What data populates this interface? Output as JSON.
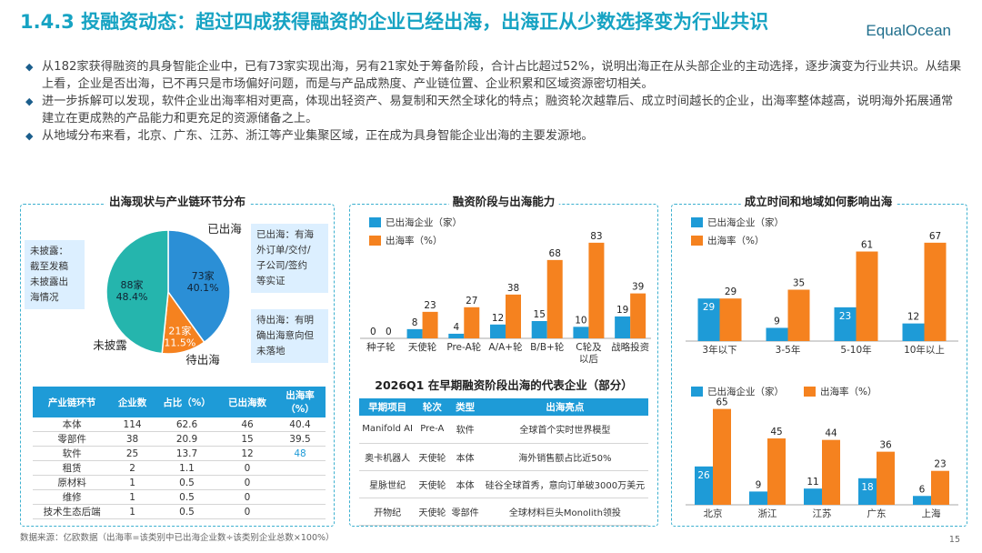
{
  "header": {
    "title": "1.4.3 投融资动态：超过四成获得融资的企业已经出海，出海正从少数选择变为行业共识",
    "logo": "EqualOcean"
  },
  "bullets": [
    "从182家获得融资的具身智能企业中，已有73家实现出海，另有21家处于筹备阶段，合计占比超过52%，说明出海正在从头部企业的主动选择，逐步演变为行业共识。从结果上看，企业是否出海，已不再只是市场偏好问题，而是与产品成熟度、产业链位置、企业积累和区域资源密切相关。",
    "进一步拆解可以发现，软件企业出海率相对更高，体现出轻资产、易复制和天然全球化的特点；融资轮次越靠后、成立时间越长的企业，出海率整体越高，说明海外拓展通常建立在更成熟的产品能力和更充足的资源储备之上。",
    "从地域分布来看，北京、广东、江苏、浙江等产业集聚区域，正在成为具身智能企业出海的主要发源地。"
  ],
  "panel_left": {
    "title": "出海现状与产业链环节分布",
    "note_left": [
      "未披露：",
      "截至发稿",
      "未披露出",
      "海情况"
    ],
    "note_right_top": [
      "已出海：有海",
      "外订单/交付/",
      "子公司/签约",
      "等实证"
    ],
    "note_right_bottom": [
      "待出海：有明",
      "确出海意向但",
      "未落地"
    ],
    "table": {
      "headers": [
        "产业链环节",
        "企业数",
        "占比（%）",
        "已出海数",
        "出海率（%）"
      ],
      "rows": [
        [
          "本体",
          "114",
          "62.6",
          "46",
          "40.4"
        ],
        [
          "零部件",
          "38",
          "20.9",
          "15",
          "39.5"
        ],
        [
          "软件",
          "25",
          "13.7",
          "12",
          "48"
        ],
        [
          "租赁",
          "2",
          "1.1",
          "0",
          ""
        ],
        [
          "原材料",
          "1",
          "0.5",
          "0",
          ""
        ],
        [
          "维修",
          "1",
          "0.5",
          "0",
          ""
        ],
        [
          "技术生态后端",
          "1",
          "0.5",
          "0",
          ""
        ]
      ]
    }
  },
  "panel_mid": {
    "title": "融资阶段与出海能力",
    "table_title": "2026Q1 在早期融资阶段出海的代表企业（部分）",
    "table": {
      "headers": [
        "早期项目",
        "轮次",
        "类型",
        "出海亮点"
      ],
      "rows": [
        [
          "Manifold AI",
          "Pre-A",
          "软件",
          "全球首个实时世界模型"
        ],
        [
          "奥卡机器人",
          "天使轮",
          "本体",
          "海外销售额占比近50%"
        ],
        [
          "星脉世纪",
          "天使轮",
          "本体",
          "硅谷全球首秀，意向订单破3000万美元"
        ],
        [
          "开物纪",
          "天使轮",
          "零部件",
          "全球材料巨头Monolith领投"
        ]
      ]
    }
  },
  "panel_right": {
    "title": "成立时间和地域如何影响出海"
  },
  "chart_data": [
    {
      "type": "pie",
      "slices": [
        {
          "label": "已出海",
          "count": "73家",
          "pct": "40.1%",
          "value": 40.1,
          "color": "#2b8fd6"
        },
        {
          "label": "待出海",
          "count": "21家",
          "pct": "11.5%",
          "value": 11.5,
          "color": "#f5821f"
        },
        {
          "label": "未披露",
          "count": "88家",
          "pct": "48.4%",
          "value": 48.4,
          "color": "#25b5ad"
        }
      ]
    },
    {
      "type": "bar",
      "categories": [
        "种子轮",
        "天使轮",
        "Pre-A轮",
        "A/A+轮",
        "B/B+轮",
        "C轮及以后",
        "战略投资"
      ],
      "series": [
        {
          "name": "已出海企业（家）",
          "color": "#1e9bd7",
          "values": [
            0,
            8,
            4,
            12,
            15,
            10,
            19
          ]
        },
        {
          "name": "出海率（%）",
          "color": "#f5821f",
          "values": [
            0,
            23,
            27,
            38,
            68,
            83,
            39
          ]
        }
      ],
      "ylim": [
        0,
        90
      ]
    },
    {
      "type": "bar",
      "categories": [
        "3年以下",
        "3-5年",
        "5-10年",
        "10年以上"
      ],
      "series": [
        {
          "name": "已出海企业（家）",
          "color": "#1e9bd7",
          "values": [
            29,
            9,
            23,
            12
          ]
        },
        {
          "name": "出海率（%）",
          "color": "#f5821f",
          "values": [
            29,
            35,
            61,
            67
          ]
        }
      ],
      "ylim": [
        0,
        70
      ]
    },
    {
      "type": "bar",
      "categories": [
        "北京",
        "浙江",
        "江苏",
        "广东",
        "上海"
      ],
      "series": [
        {
          "name": "已出海企业（家）",
          "color": "#1e9bd7",
          "values": [
            26,
            9,
            11,
            18,
            6
          ]
        },
        {
          "name": "出海率（%）",
          "color": "#f5821f",
          "values": [
            65,
            45,
            44,
            36,
            23
          ]
        }
      ],
      "ylim": [
        0,
        66
      ]
    }
  ],
  "footer": {
    "source": "数据来源：亿欧数据（出海率=该类别中已出海企业数÷该类别企业总数×100%）",
    "page": "15"
  }
}
